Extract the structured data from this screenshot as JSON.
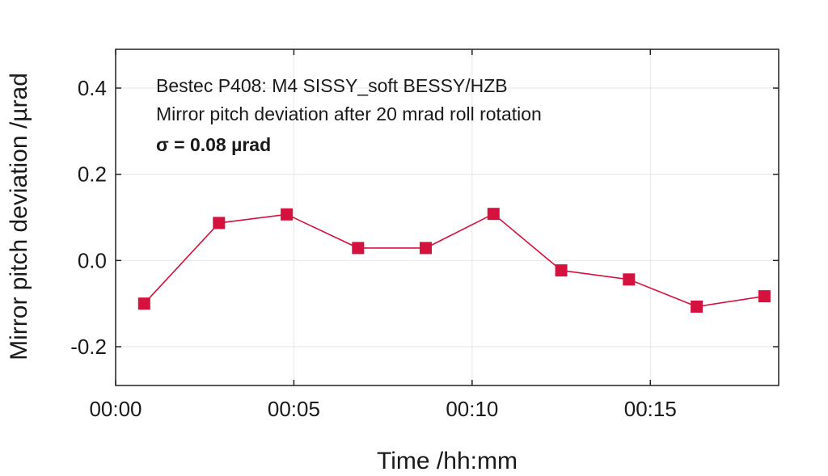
{
  "chart_data": {
    "type": "line",
    "xlabel": "Time /hh:mm",
    "ylabel": "Mirror pitch deviation /µrad",
    "xlim_minutes": [
      0,
      18.6
    ],
    "ylim": [
      -0.29,
      0.49
    ],
    "xticks": [
      {
        "value": 0,
        "label": "00:00"
      },
      {
        "value": 5,
        "label": "00:05"
      },
      {
        "value": 10,
        "label": "00:10"
      },
      {
        "value": 15,
        "label": "00:15"
      }
    ],
    "yticks": [
      {
        "value": 0.4,
        "label": "0.4"
      },
      {
        "value": 0.2,
        "label": "0.2"
      },
      {
        "value": 0.0,
        "label": "0.0"
      },
      {
        "value": -0.2,
        "label": "-0.2"
      }
    ],
    "grid": true,
    "annotations": [
      "Bestec P408: M4 SISSY_soft BESSY/HZB",
      "Mirror pitch deviation after 20 mrad roll rotation",
      "σ = 0.08 µrad"
    ],
    "series": [
      {
        "color": "#d5123e",
        "marker": "square",
        "x": [
          "00:00:48",
          "00:02:54",
          "00:04:48",
          "00:06:48",
          "00:08:42",
          "00:10:36",
          "00:12:30",
          "00:14:24",
          "00:16:18",
          "00:18:12"
        ],
        "values": [
          -0.1,
          0.087,
          0.107,
          0.029,
          0.029,
          0.108,
          -0.023,
          -0.044,
          -0.107,
          -0.083
        ]
      }
    ]
  }
}
